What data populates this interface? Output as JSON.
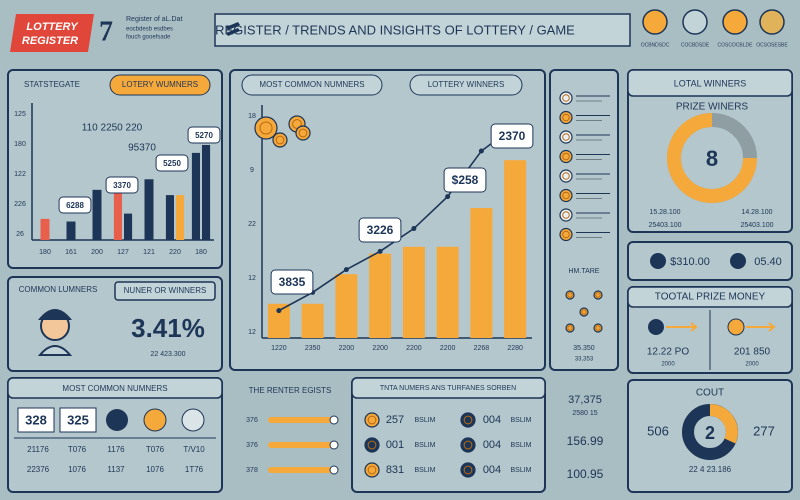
{
  "header": {
    "logo": [
      "LOTTERY",
      "REGISTER"
    ],
    "logo_number": "7",
    "subtitle_lines": [
      "Register of aL.Dat",
      "eocbdesb esdbes",
      "fouch gooefsade"
    ],
    "title": "REGISTER / TRENDS AND INSIGHTS OF LOTTERY / GAME",
    "icons": [
      "OCBNDSDC",
      "COCBDSDE",
      "COSCOCBLDE",
      "OCSOSESBE"
    ]
  },
  "left_tabs": [
    "STATSTEGATE",
    "LOTERY WUMNERS"
  ],
  "center_tabs": [
    "MOST COMMON NUMNERS",
    "LOTTERY WINNERS"
  ],
  "chart_data": [
    {
      "type": "bar",
      "categories": [
        "180",
        "161",
        "200",
        "127",
        "121",
        "220",
        "180"
      ],
      "series": [
        {
          "color": "#e8604c",
          "values": [
            16,
            null,
            null,
            36,
            null,
            null,
            null
          ]
        },
        {
          "color": "#1d3557",
          "values": [
            null,
            14,
            38,
            20,
            46,
            34,
            66
          ]
        },
        {
          "color": "#f6a93b",
          "values": [
            null,
            null,
            null,
            null,
            null,
            34,
            null
          ]
        },
        {
          "color": "#1d3557",
          "values": [
            null,
            null,
            null,
            null,
            null,
            null,
            72
          ]
        }
      ],
      "axis_labels": [
        "125",
        "180",
        "122",
        "226",
        "26"
      ],
      "ylim": [
        0,
        100
      ],
      "annotations": [
        "110 2250 220",
        "95370",
        "6288",
        "3370",
        "5250",
        "5270"
      ]
    },
    {
      "type": "bar",
      "categories": [
        "1220",
        "2350",
        "2200",
        "2200",
        "2200",
        "2200",
        "2268",
        "2280"
      ],
      "series": [
        {
          "type": "bar",
          "color": "#f6a93b",
          "values": [
            15,
            15,
            28,
            37,
            40,
            40,
            57,
            78
          ]
        },
        {
          "type": "line",
          "color": "#1d3557",
          "values": [
            12,
            20,
            30,
            38,
            48,
            62,
            82,
            93
          ]
        }
      ],
      "axis_labels": [
        "18",
        "9",
        "22",
        "12",
        "12"
      ],
      "ylim": [
        0,
        100
      ],
      "annotations": [
        "3835",
        "3226",
        "$258",
        "2370"
      ]
    }
  ],
  "common_panel": {
    "title": "COMMON LUMNERS",
    "pill": "NUNER OR WINNERS",
    "big": "3.41%",
    "small": "22 423.300"
  },
  "most_common": {
    "title": "MOST COMMON NUMNERS",
    "top": [
      "328",
      "325"
    ],
    "rows": [
      [
        "21176",
        "T076",
        "1176",
        "T076",
        "T/V10"
      ],
      [
        "22376",
        "1076",
        "1137",
        "1076",
        "1T76"
      ]
    ]
  },
  "list_panel": {
    "label": "HM.TARE",
    "values": [
      "35.350",
      "33,353"
    ]
  },
  "total_winners": {
    "title": "LOTAL WINNERS",
    "subtitle": "PRIZE WINERS",
    "center": "8",
    "labels": [
      "15.28.100",
      "14.28.100",
      "25403.100",
      "25403.100"
    ]
  },
  "money_row": [
    "$310.00",
    "05.40"
  ],
  "prize_money": {
    "title": "TOOTAL PRIZE MONEY",
    "values": [
      "12.22 PO",
      "2000",
      "201 850",
      "2000"
    ]
  },
  "count": {
    "title": "COUT",
    "center": "2",
    "left": "506",
    "right": "277",
    "bottom": "22 4 23.186"
  },
  "renter": {
    "title": "THE RENTER EGISTS",
    "rows": [
      "376",
      "376",
      "378"
    ]
  },
  "tnta": {
    "title": "TNTA NUMERS ANS TURFANES SORBEN",
    "rows": [
      [
        "257",
        "BSLIM",
        "004",
        "BSLIM"
      ],
      [
        "001",
        "BSLIM",
        "004",
        "BSLIM"
      ],
      [
        "831",
        "BSLIM",
        "004",
        "BSLIM"
      ]
    ]
  },
  "side_numbers": [
    "37,375",
    "2580 15",
    "156.99",
    "100.95"
  ]
}
